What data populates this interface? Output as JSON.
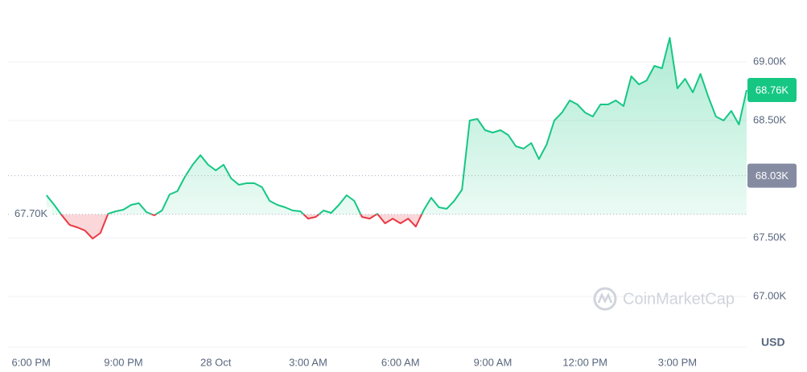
{
  "chart_data": {
    "type": "line",
    "categories": [
      null,
      null,
      null,
      "6:00 PM",
      null,
      null,
      null,
      null,
      null,
      null,
      null,
      null,
      null,
      null,
      null,
      "9:00 PM",
      null,
      null,
      null,
      null,
      null,
      null,
      null,
      null,
      null,
      null,
      null,
      "28 Oct",
      null,
      null,
      null,
      null,
      null,
      null,
      null,
      null,
      null,
      null,
      null,
      "3:00 AM",
      null,
      null,
      null,
      null,
      null,
      null,
      null,
      null,
      null,
      null,
      null,
      "6:00 AM",
      null,
      null,
      null,
      null,
      null,
      null,
      null,
      null,
      null,
      null,
      null,
      "9:00 AM",
      null,
      null,
      null,
      null,
      null,
      null,
      null,
      null,
      null,
      null,
      null,
      "12:00 PM",
      null,
      null,
      null,
      null,
      null,
      null,
      null,
      null,
      null,
      null,
      null,
      "3:00 PM",
      null,
      null,
      null,
      null,
      null,
      null,
      null,
      null,
      null
    ],
    "values": [
      null,
      null,
      null,
      null,
      null,
      67863,
      67781,
      67692,
      67610,
      67589,
      67562,
      67493,
      67541,
      67705,
      67726,
      67740,
      67781,
      67795,
      67719,
      67692,
      67733,
      67870,
      67897,
      68021,
      68123,
      68205,
      68123,
      68075,
      68123,
      68007,
      67952,
      67966,
      67966,
      67932,
      67815,
      67781,
      67760,
      67733,
      67726,
      67664,
      67678,
      67733,
      67712,
      67781,
      67863,
      67815,
      67678,
      67664,
      67705,
      67623,
      67664,
      67623,
      67664,
      67596,
      67733,
      67842,
      67760,
      67747,
      67815,
      67911,
      68500,
      68514,
      68418,
      68397,
      68418,
      68377,
      68281,
      68260,
      68308,
      68171,
      68295,
      68500,
      68568,
      68671,
      68637,
      68568,
      68534,
      68637,
      68637,
      68671,
      68623,
      68877,
      68808,
      68842,
      68966,
      68945,
      69205,
      68774,
      68856,
      68740,
      68897,
      68705,
      68534,
      68500,
      68582,
      68466,
      68760
    ],
    "color": "#16c784",
    "down_color": "#ea3943",
    "baseline": {
      "value": 67700,
      "label": "67.70K"
    },
    "current_price": {
      "value": 68760,
      "label": "68.76K"
    },
    "reference_price": {
      "value": 68030,
      "label": "68.03K"
    },
    "ylim": [
      66750,
      69500
    ],
    "yticks": [
      {
        "value": 67000,
        "label": "67.00K"
      },
      {
        "value": 67500,
        "label": "67.50K"
      },
      {
        "value": 68500,
        "label": "68.50K"
      },
      {
        "value": 69000,
        "label": "69.00K"
      }
    ],
    "grid": true,
    "currency": "USD",
    "watermark": "CoinMarketCap"
  }
}
